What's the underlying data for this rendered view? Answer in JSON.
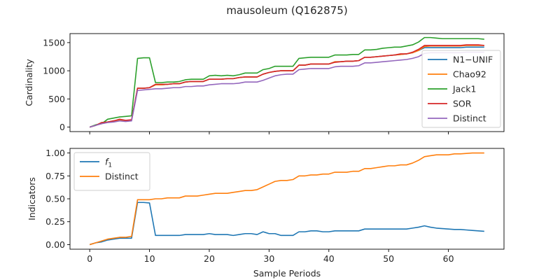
{
  "figure": {
    "title": "mausoleum (Q162875)"
  },
  "chart_data": [
    {
      "type": "line",
      "ylabel": "Cardinality",
      "xlabel": "",
      "xlim": [
        -3.3,
        69.3
      ],
      "ylim": [
        -80,
        1660
      ],
      "xticks": [
        0,
        10,
        20,
        30,
        40,
        50,
        60
      ],
      "yticks": [
        0,
        500,
        1000,
        1500
      ],
      "show_x_tick_labels": false,
      "legend_placement": "right",
      "series": [
        {
          "name": "N1−UNIF",
          "color": "#1f77b4",
          "values": [
            0,
            30,
            80,
            90,
            110,
            120,
            120,
            120,
            690,
            690,
            700,
            750,
            750,
            760,
            770,
            770,
            800,
            810,
            810,
            810,
            850,
            850,
            850,
            860,
            860,
            880,
            890,
            890,
            890,
            940,
            970,
            990,
            1000,
            1000,
            1000,
            1100,
            1100,
            1120,
            1120,
            1120,
            1120,
            1160,
            1160,
            1170,
            1170,
            1180,
            1240,
            1240,
            1250,
            1260,
            1270,
            1280,
            1290,
            1300,
            1320,
            1360,
            1410,
            1410,
            1410,
            1410,
            1410,
            1410,
            1410,
            1420,
            1420,
            1420,
            1420
          ]
        },
        {
          "name": "Chao92",
          "color": "#ff7f0e",
          "values": [
            0,
            30,
            80,
            90,
            110,
            120,
            120,
            120,
            690,
            690,
            700,
            750,
            750,
            760,
            770,
            770,
            800,
            810,
            810,
            810,
            850,
            850,
            850,
            860,
            860,
            880,
            890,
            890,
            890,
            940,
            970,
            990,
            1000,
            1000,
            1000,
            1100,
            1100,
            1120,
            1120,
            1120,
            1120,
            1160,
            1160,
            1170,
            1170,
            1180,
            1240,
            1240,
            1250,
            1260,
            1270,
            1280,
            1290,
            1300,
            1320,
            1360,
            1430,
            1440,
            1440,
            1440,
            1440,
            1440,
            1440,
            1450,
            1450,
            1450,
            1450
          ]
        },
        {
          "name": "Jack1",
          "color": "#2ca02c",
          "values": [
            0,
            40,
            60,
            140,
            160,
            180,
            190,
            200,
            1220,
            1230,
            1230,
            790,
            790,
            800,
            800,
            810,
            840,
            850,
            850,
            850,
            910,
            920,
            910,
            920,
            910,
            930,
            960,
            960,
            960,
            1020,
            1040,
            1080,
            1080,
            1080,
            1080,
            1220,
            1230,
            1240,
            1240,
            1240,
            1240,
            1280,
            1280,
            1280,
            1290,
            1290,
            1370,
            1370,
            1380,
            1400,
            1410,
            1420,
            1420,
            1440,
            1460,
            1510,
            1590,
            1590,
            1580,
            1570,
            1570,
            1570,
            1570,
            1570,
            1570,
            1570,
            1560
          ]
        },
        {
          "name": "SOR",
          "color": "#d62728",
          "values": [
            0,
            30,
            80,
            90,
            110,
            140,
            120,
            130,
            690,
            690,
            700,
            760,
            760,
            760,
            770,
            770,
            800,
            810,
            810,
            810,
            850,
            850,
            850,
            860,
            860,
            880,
            890,
            890,
            890,
            940,
            970,
            990,
            1000,
            1000,
            1000,
            1100,
            1100,
            1120,
            1120,
            1120,
            1120,
            1150,
            1160,
            1170,
            1170,
            1180,
            1240,
            1240,
            1250,
            1260,
            1270,
            1280,
            1300,
            1300,
            1330,
            1380,
            1450,
            1450,
            1450,
            1450,
            1450,
            1450,
            1450,
            1460,
            1460,
            1460,
            1450
          ]
        },
        {
          "name": "Distinct",
          "color": "#9467bd",
          "values": [
            0,
            30,
            60,
            80,
            90,
            110,
            100,
            110,
            650,
            660,
            670,
            680,
            680,
            690,
            700,
            700,
            720,
            720,
            730,
            730,
            750,
            760,
            770,
            770,
            770,
            780,
            800,
            800,
            800,
            830,
            870,
            910,
            930,
            940,
            940,
            1020,
            1030,
            1040,
            1040,
            1040,
            1040,
            1070,
            1080,
            1080,
            1080,
            1090,
            1140,
            1140,
            1150,
            1160,
            1170,
            1180,
            1190,
            1200,
            1220,
            1250,
            1310,
            1320,
            1320,
            1320,
            1320,
            1320,
            1320,
            1330,
            1330,
            1330,
            1330
          ]
        }
      ]
    },
    {
      "type": "line",
      "ylabel": "Indicators",
      "xlabel": "Sample Periods",
      "xlim": [
        -3.3,
        69.3
      ],
      "ylim": [
        -0.05,
        1.05
      ],
      "xticks": [
        0,
        10,
        20,
        30,
        40,
        50,
        60
      ],
      "yticks": [
        0.0,
        0.25,
        0.5,
        0.75,
        1.0
      ],
      "yticklabels": [
        "0.00",
        "0.25",
        "0.50",
        "0.75",
        "1.00"
      ],
      "show_x_tick_labels": true,
      "legend_placement": "top-left",
      "series": [
        {
          "name": "f",
          "name_subscript": "1",
          "color": "#1f77b4",
          "values": [
            0,
            0.02,
            0.03,
            0.05,
            0.06,
            0.07,
            0.07,
            0.07,
            0.46,
            0.46,
            0.455,
            0.1,
            0.1,
            0.1,
            0.1,
            0.1,
            0.11,
            0.11,
            0.11,
            0.11,
            0.12,
            0.11,
            0.11,
            0.11,
            0.1,
            0.11,
            0.12,
            0.12,
            0.11,
            0.14,
            0.12,
            0.12,
            0.1,
            0.1,
            0.1,
            0.14,
            0.14,
            0.15,
            0.15,
            0.14,
            0.14,
            0.15,
            0.15,
            0.15,
            0.15,
            0.15,
            0.17,
            0.17,
            0.17,
            0.17,
            0.17,
            0.17,
            0.17,
            0.17,
            0.18,
            0.19,
            0.205,
            0.19,
            0.18,
            0.175,
            0.17,
            0.165,
            0.165,
            0.16,
            0.155,
            0.15,
            0.145
          ]
        },
        {
          "name": "Distinct",
          "name_subscript": "",
          "color": "#ff7f0e",
          "values": [
            0,
            0.02,
            0.04,
            0.06,
            0.07,
            0.08,
            0.08,
            0.09,
            0.49,
            0.49,
            0.49,
            0.5,
            0.5,
            0.51,
            0.51,
            0.51,
            0.53,
            0.53,
            0.53,
            0.54,
            0.55,
            0.56,
            0.56,
            0.56,
            0.57,
            0.58,
            0.59,
            0.59,
            0.6,
            0.63,
            0.66,
            0.69,
            0.7,
            0.7,
            0.71,
            0.75,
            0.75,
            0.76,
            0.76,
            0.77,
            0.77,
            0.79,
            0.79,
            0.79,
            0.8,
            0.8,
            0.83,
            0.83,
            0.84,
            0.85,
            0.86,
            0.86,
            0.87,
            0.87,
            0.89,
            0.92,
            0.96,
            0.97,
            0.98,
            0.98,
            0.98,
            0.99,
            0.99,
            0.995,
            1.0,
            1.0,
            1.0
          ]
        }
      ]
    }
  ]
}
